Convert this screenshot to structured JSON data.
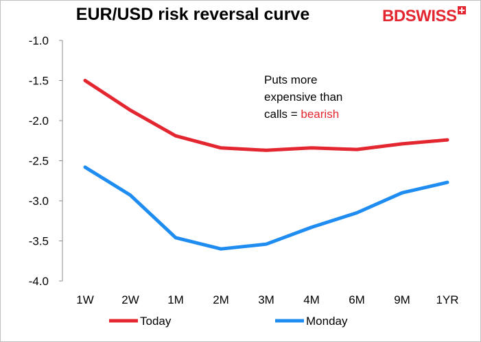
{
  "chart_data": {
    "type": "line",
    "title": "EUR/USD risk reversal curve",
    "categories": [
      "1W",
      "2W",
      "1M",
      "2M",
      "3M",
      "4M",
      "6M",
      "9M",
      "1YR"
    ],
    "series": [
      {
        "name": "Today",
        "color": "#e3262f",
        "values": [
          -1.5,
          -1.87,
          -2.19,
          -2.34,
          -2.37,
          -2.34,
          -2.36,
          -2.29,
          -2.24
        ]
      },
      {
        "name": "Monday",
        "color": "#1e8cf0",
        "values": [
          -2.58,
          -2.93,
          -3.46,
          -3.6,
          -3.54,
          -3.33,
          -3.15,
          -2.9,
          -2.77
        ]
      }
    ],
    "ylim": [
      -4.0,
      -1.0
    ],
    "yticks": [
      "-1.0",
      "-1.5",
      "-2.0",
      "-2.5",
      "-3.0",
      "-3.5",
      "-4.0"
    ],
    "ytick_values": [
      -1.0,
      -1.5,
      -2.0,
      -2.5,
      -3.0,
      -3.5,
      -4.0
    ],
    "grid": false,
    "legend": "bottom",
    "annotation": {
      "line1": "Puts more",
      "line2": "expensive than",
      "line3_prefix": "calls = ",
      "line3_highlight": "bearish",
      "highlight_color": "#e3262f"
    }
  },
  "brand": {
    "logo_text": "BDSWISS",
    "logo_color": "#e3262f"
  }
}
